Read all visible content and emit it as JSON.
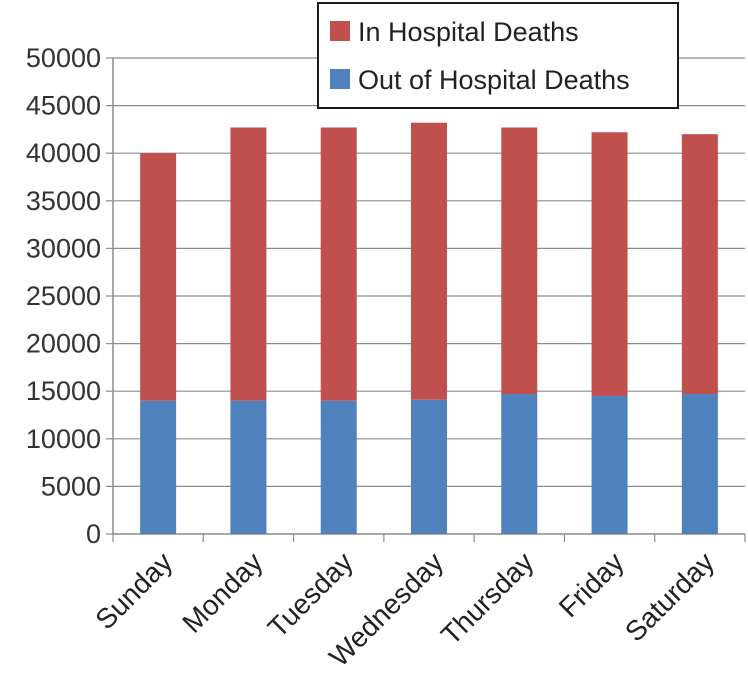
{
  "chart_data": {
    "type": "bar",
    "stacked": true,
    "categories": [
      "Sunday",
      "Monday",
      "Tuesday",
      "Wednesday",
      "Thursday",
      "Friday",
      "Saturday"
    ],
    "series": [
      {
        "name": "Out of Hospital Deaths",
        "color": "#4f81bd",
        "values": [
          14000,
          14000,
          14000,
          14100,
          14700,
          14500,
          14700
        ]
      },
      {
        "name": "In Hospital Deaths",
        "color": "#c0504d",
        "values": [
          26000,
          28700,
          28700,
          29100,
          28000,
          27700,
          27300
        ]
      }
    ],
    "ylim": [
      0,
      50000
    ],
    "yticks": [
      0,
      5000,
      10000,
      15000,
      20000,
      25000,
      30000,
      35000,
      40000,
      45000,
      50000
    ],
    "grid": true,
    "legend_position": "top-right",
    "legend_order": [
      "In Hospital Deaths",
      "Out of Hospital Deaths"
    ],
    "xlabel": "",
    "ylabel": "",
    "title": ""
  }
}
